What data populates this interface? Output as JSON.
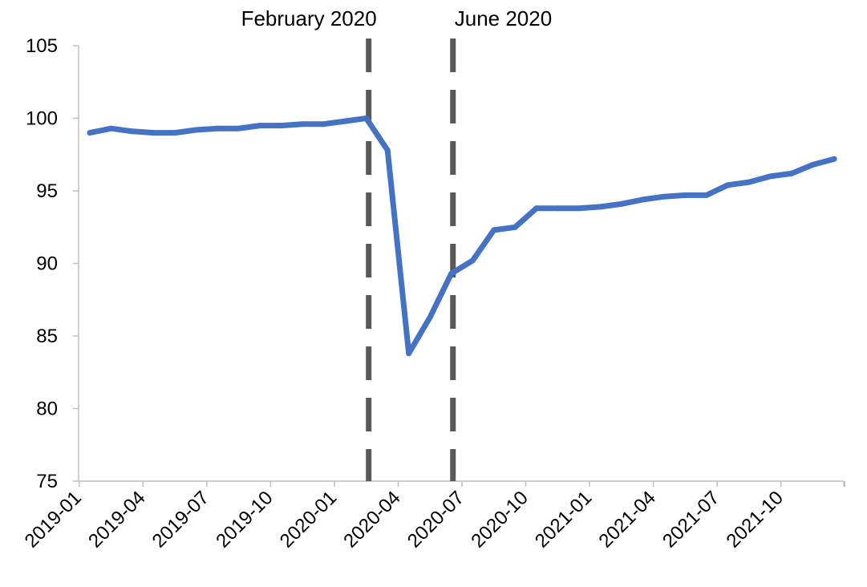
{
  "chart_data": {
    "type": "line",
    "title": "",
    "xlabel": "",
    "ylabel": "",
    "ylim": [
      75,
      105
    ],
    "yticks": [
      "75",
      "80",
      "85",
      "90",
      "95",
      "100",
      "105"
    ],
    "xtick_labels": [
      "2019-01",
      "2019-04",
      "2019-07",
      "2019-10",
      "2020-01",
      "2020-04",
      "2020-07",
      "2020-10",
      "2021-01",
      "2021-04",
      "2021-07",
      "2021-10"
    ],
    "grid": false,
    "legend": "none",
    "series": [
      {
        "color": "#4472C4",
        "x": [
          "2019-01",
          "2019-02",
          "2019-03",
          "2019-04",
          "2019-05",
          "2019-06",
          "2019-07",
          "2019-08",
          "2019-09",
          "2019-10",
          "2019-11",
          "2019-12",
          "2020-01",
          "2020-02",
          "2020-03",
          "2020-04",
          "2020-05",
          "2020-06",
          "2020-07",
          "2020-08",
          "2020-09",
          "2020-10",
          "2020-11",
          "2020-12",
          "2021-01",
          "2021-02",
          "2021-03",
          "2021-04",
          "2021-05",
          "2021-06",
          "2021-07",
          "2021-08",
          "2021-09",
          "2021-10",
          "2021-11",
          "2021-12"
        ],
        "values": [
          99.0,
          99.3,
          99.1,
          99.0,
          99.0,
          99.2,
          99.3,
          99.3,
          99.5,
          99.5,
          99.6,
          99.6,
          99.8,
          100.0,
          97.8,
          83.8,
          86.3,
          89.3,
          90.2,
          92.3,
          92.5,
          93.8,
          93.8,
          93.8,
          93.9,
          94.1,
          94.4,
          94.6,
          94.7,
          94.7,
          95.4,
          95.6,
          96.0,
          96.2,
          96.8,
          97.2
        ]
      }
    ],
    "annotations": [
      {
        "label": "February 2020",
        "x": "2020-02",
        "style": "dashed"
      },
      {
        "label": "June 2020",
        "x": "2020-06",
        "style": "dashed"
      }
    ],
    "colors": {
      "line": "#4472C4",
      "marker_lines": "#595959",
      "axis": "#bfbfbf"
    }
  }
}
